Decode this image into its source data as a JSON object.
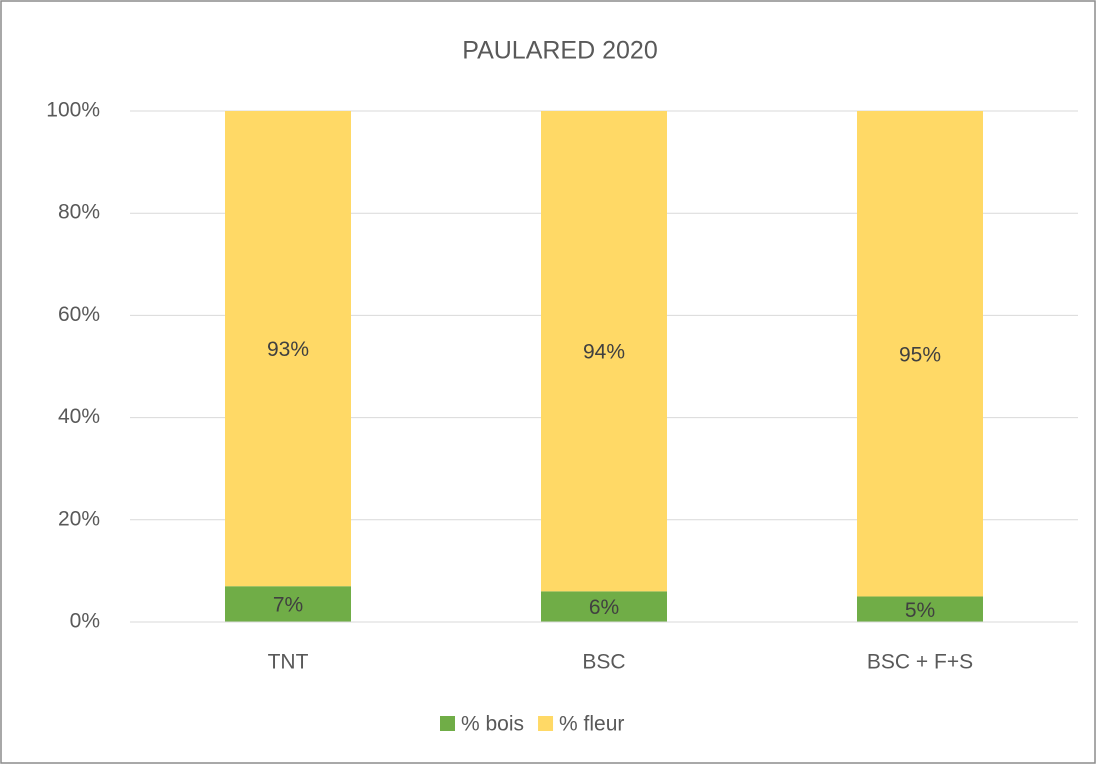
{
  "chart_data": {
    "type": "bar",
    "stacked": true,
    "title": "PAULARED 2020",
    "categories": [
      "TNT",
      "BSC",
      "BSC + F+S"
    ],
    "series": [
      {
        "name": "% bois",
        "color": "#70ad47",
        "values": [
          7,
          6,
          5
        ],
        "value_labels": [
          "7%",
          "6%",
          "5%"
        ]
      },
      {
        "name": "% fleur",
        "color": "#ffd966",
        "values": [
          93,
          94,
          95
        ],
        "value_labels": [
          "93%",
          "94%",
          "95%"
        ]
      }
    ],
    "ylim": [
      0,
      100
    ],
    "yticks": [
      {
        "value": 0,
        "label": "0%"
      },
      {
        "value": 20,
        "label": "20%"
      },
      {
        "value": 40,
        "label": "40%"
      },
      {
        "value": 60,
        "label": "60%"
      },
      {
        "value": 80,
        "label": "80%"
      },
      {
        "value": 100,
        "label": "100%"
      }
    ],
    "grid": true,
    "legend": "bottom"
  }
}
